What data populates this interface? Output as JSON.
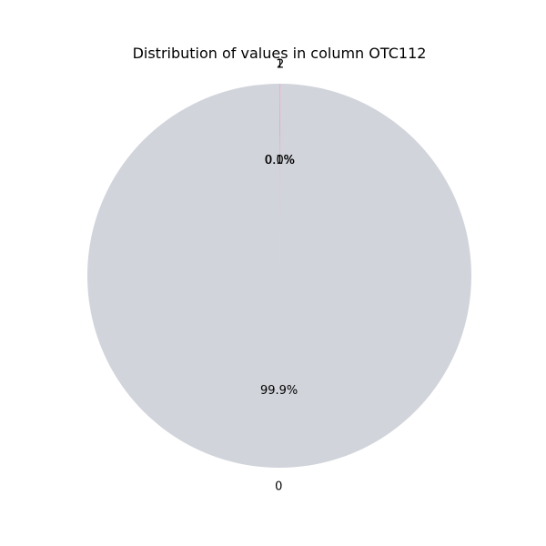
{
  "chart_data": {
    "type": "pie",
    "title": "Distribution of values in column OTC112",
    "labels": [
      "0",
      "2",
      "1"
    ],
    "values": [
      99.9,
      0.05,
      0.05
    ],
    "percent_labels": [
      "99.9%",
      "0.0%",
      "0.1%"
    ],
    "colors": [
      "#d1d4db",
      "#f2a6c2",
      "#c9b6dc"
    ],
    "start_angle_deg": 90,
    "direction": "counterclockwise",
    "legend": "none"
  }
}
